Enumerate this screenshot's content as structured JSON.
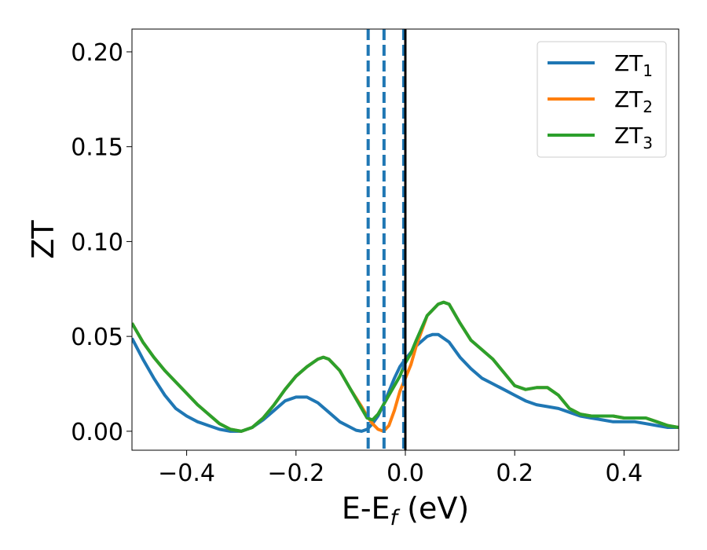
{
  "chart_data": {
    "type": "line",
    "xlabel_main": "E-E",
    "xlabel_sub": "f",
    "xlabel_tail": " (eV)",
    "ylabel": "ZT",
    "xlim": [
      -0.5,
      0.5
    ],
    "ylim": [
      -0.01,
      0.212
    ],
    "x_ticks": [
      {
        "value": -0.4,
        "label": "−0.4"
      },
      {
        "value": -0.2,
        "label": "−0.2"
      },
      {
        "value": 0.0,
        "label": "0.0"
      },
      {
        "value": 0.2,
        "label": "0.2"
      },
      {
        "value": 0.4,
        "label": "0.4"
      }
    ],
    "y_ticks": [
      {
        "value": 0.0,
        "label": "0.00"
      },
      {
        "value": 0.05,
        "label": "0.05"
      },
      {
        "value": 0.1,
        "label": "0.10"
      },
      {
        "value": 0.15,
        "label": "0.15"
      },
      {
        "value": 0.2,
        "label": "0.20"
      }
    ],
    "grid": false,
    "legend_position": "top-right",
    "vlines_dashed": {
      "color": "#1f77b4",
      "x": [
        -0.068,
        -0.039,
        -0.003
      ]
    },
    "vline_solid": {
      "color": "#000000",
      "x": 0.0
    },
    "series": [
      {
        "name": "ZT",
        "sub": "1",
        "color": "#1f77b4",
        "points": [
          [
            -0.5,
            0.049
          ],
          [
            -0.48,
            0.038
          ],
          [
            -0.46,
            0.028
          ],
          [
            -0.44,
            0.019
          ],
          [
            -0.42,
            0.012
          ],
          [
            -0.4,
            0.008
          ],
          [
            -0.38,
            0.005
          ],
          [
            -0.36,
            0.003
          ],
          [
            -0.34,
            0.001
          ],
          [
            -0.32,
            0.0
          ],
          [
            -0.3,
            0.0
          ],
          [
            -0.28,
            0.002
          ],
          [
            -0.26,
            0.006
          ],
          [
            -0.24,
            0.011
          ],
          [
            -0.22,
            0.016
          ],
          [
            -0.2,
            0.018
          ],
          [
            -0.18,
            0.018
          ],
          [
            -0.16,
            0.015
          ],
          [
            -0.14,
            0.01
          ],
          [
            -0.12,
            0.005
          ],
          [
            -0.1,
            0.002
          ],
          [
            -0.09,
            0.0005
          ],
          [
            -0.08,
            0.0
          ],
          [
            -0.07,
            0.001
          ],
          [
            -0.06,
            0.004
          ],
          [
            -0.05,
            0.008
          ],
          [
            -0.04,
            0.014
          ],
          [
            -0.03,
            0.021
          ],
          [
            -0.02,
            0.028
          ],
          [
            -0.01,
            0.034
          ],
          [
            0.0,
            0.038
          ],
          [
            0.02,
            0.045
          ],
          [
            0.04,
            0.05
          ],
          [
            0.05,
            0.051
          ],
          [
            0.06,
            0.051
          ],
          [
            0.08,
            0.047
          ],
          [
            0.1,
            0.039
          ],
          [
            0.12,
            0.033
          ],
          [
            0.14,
            0.028
          ],
          [
            0.16,
            0.025
          ],
          [
            0.18,
            0.022
          ],
          [
            0.2,
            0.019
          ],
          [
            0.22,
            0.016
          ],
          [
            0.24,
            0.014
          ],
          [
            0.26,
            0.013
          ],
          [
            0.28,
            0.012
          ],
          [
            0.3,
            0.01
          ],
          [
            0.32,
            0.008
          ],
          [
            0.34,
            0.007
          ],
          [
            0.36,
            0.006
          ],
          [
            0.38,
            0.005
          ],
          [
            0.4,
            0.005
          ],
          [
            0.42,
            0.005
          ],
          [
            0.44,
            0.004
          ],
          [
            0.46,
            0.003
          ],
          [
            0.48,
            0.002
          ],
          [
            0.5,
            0.002
          ]
        ]
      },
      {
        "name": "ZT",
        "sub": "2",
        "color": "#ff7f0e",
        "points": [
          [
            -0.5,
            0.057
          ],
          [
            -0.48,
            0.047
          ],
          [
            -0.46,
            0.039
          ],
          [
            -0.44,
            0.032
          ],
          [
            -0.42,
            0.026
          ],
          [
            -0.4,
            0.02
          ],
          [
            -0.38,
            0.014
          ],
          [
            -0.36,
            0.009
          ],
          [
            -0.34,
            0.004
          ],
          [
            -0.32,
            0.001
          ],
          [
            -0.3,
            0.0
          ],
          [
            -0.28,
            0.002
          ],
          [
            -0.26,
            0.007
          ],
          [
            -0.24,
            0.014
          ],
          [
            -0.22,
            0.022
          ],
          [
            -0.2,
            0.029
          ],
          [
            -0.18,
            0.034
          ],
          [
            -0.16,
            0.038
          ],
          [
            -0.15,
            0.039
          ],
          [
            -0.14,
            0.038
          ],
          [
            -0.12,
            0.032
          ],
          [
            -0.1,
            0.022
          ],
          [
            -0.08,
            0.013
          ],
          [
            -0.07,
            0.008
          ],
          [
            -0.06,
            0.004
          ],
          [
            -0.05,
            0.001
          ],
          [
            -0.04,
            0.0
          ],
          [
            -0.03,
            0.003
          ],
          [
            -0.02,
            0.011
          ],
          [
            -0.01,
            0.021
          ],
          [
            0.0,
            0.028
          ],
          [
            0.01,
            0.035
          ],
          [
            0.02,
            0.045
          ],
          [
            0.04,
            0.061
          ],
          [
            0.06,
            0.067
          ],
          [
            0.07,
            0.068
          ],
          [
            0.08,
            0.067
          ],
          [
            0.1,
            0.057
          ],
          [
            0.12,
            0.048
          ],
          [
            0.14,
            0.043
          ],
          [
            0.16,
            0.038
          ],
          [
            0.18,
            0.031
          ],
          [
            0.2,
            0.024
          ],
          [
            0.22,
            0.022
          ],
          [
            0.24,
            0.023
          ],
          [
            0.26,
            0.023
          ],
          [
            0.28,
            0.019
          ],
          [
            0.3,
            0.012
          ],
          [
            0.32,
            0.009
          ],
          [
            0.34,
            0.008
          ],
          [
            0.36,
            0.008
          ],
          [
            0.38,
            0.008
          ],
          [
            0.4,
            0.007
          ],
          [
            0.42,
            0.007
          ],
          [
            0.44,
            0.007
          ],
          [
            0.46,
            0.005
          ],
          [
            0.48,
            0.003
          ],
          [
            0.5,
            0.002
          ]
        ]
      },
      {
        "name": "ZT",
        "sub": "3",
        "color": "#2ca02c",
        "points": [
          [
            -0.5,
            0.057
          ],
          [
            -0.48,
            0.047
          ],
          [
            -0.46,
            0.039
          ],
          [
            -0.44,
            0.032
          ],
          [
            -0.42,
            0.026
          ],
          [
            -0.4,
            0.02
          ],
          [
            -0.38,
            0.014
          ],
          [
            -0.36,
            0.009
          ],
          [
            -0.34,
            0.004
          ],
          [
            -0.32,
            0.001
          ],
          [
            -0.3,
            0.0
          ],
          [
            -0.28,
            0.002
          ],
          [
            -0.26,
            0.007
          ],
          [
            -0.24,
            0.014
          ],
          [
            -0.22,
            0.022
          ],
          [
            -0.2,
            0.029
          ],
          [
            -0.18,
            0.034
          ],
          [
            -0.16,
            0.038
          ],
          [
            -0.15,
            0.039
          ],
          [
            -0.14,
            0.038
          ],
          [
            -0.12,
            0.032
          ],
          [
            -0.1,
            0.022
          ],
          [
            -0.08,
            0.012
          ],
          [
            -0.07,
            0.007
          ],
          [
            -0.06,
            0.006
          ],
          [
            -0.05,
            0.009
          ],
          [
            -0.04,
            0.014
          ],
          [
            -0.03,
            0.019
          ],
          [
            -0.02,
            0.024
          ],
          [
            -0.01,
            0.029
          ],
          [
            0.0,
            0.036
          ],
          [
            0.01,
            0.041
          ],
          [
            0.02,
            0.048
          ],
          [
            0.04,
            0.061
          ],
          [
            0.06,
            0.067
          ],
          [
            0.07,
            0.068
          ],
          [
            0.08,
            0.067
          ],
          [
            0.1,
            0.057
          ],
          [
            0.12,
            0.048
          ],
          [
            0.14,
            0.043
          ],
          [
            0.16,
            0.038
          ],
          [
            0.18,
            0.031
          ],
          [
            0.2,
            0.024
          ],
          [
            0.22,
            0.022
          ],
          [
            0.24,
            0.023
          ],
          [
            0.26,
            0.023
          ],
          [
            0.28,
            0.019
          ],
          [
            0.3,
            0.012
          ],
          [
            0.32,
            0.009
          ],
          [
            0.34,
            0.008
          ],
          [
            0.36,
            0.008
          ],
          [
            0.38,
            0.008
          ],
          [
            0.4,
            0.007
          ],
          [
            0.42,
            0.007
          ],
          [
            0.44,
            0.007
          ],
          [
            0.46,
            0.005
          ],
          [
            0.48,
            0.003
          ],
          [
            0.5,
            0.002
          ]
        ]
      }
    ]
  }
}
